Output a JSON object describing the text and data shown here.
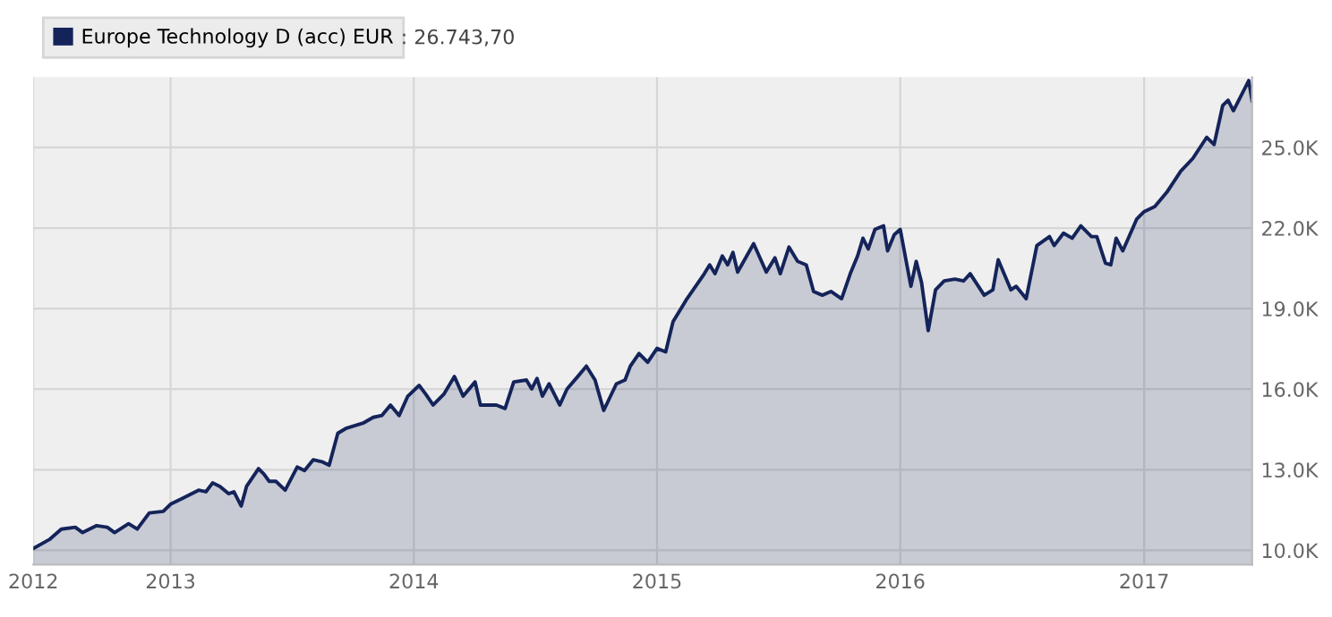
{
  "chart_data": {
    "type": "area",
    "series": [
      {
        "name": "Europe Technology D (acc) EUR",
        "color": "#14245a",
        "x": [
          "2012-06-09",
          "2012-07-03",
          "2012-07-21",
          "2012-08-11",
          "2012-08-22",
          "2012-09-12",
          "2012-09-28",
          "2012-10-09",
          "2012-10-30",
          "2012-11-12",
          "2012-11-30",
          "2012-12-21",
          "2013-01-01",
          "2013-01-17",
          "2013-02-12",
          "2013-02-23",
          "2013-03-05",
          "2013-03-16",
          "2013-03-29",
          "2013-04-06",
          "2013-04-17",
          "2013-04-25",
          "2013-05-13",
          "2013-05-21",
          "2013-05-29",
          "2013-06-08",
          "2013-06-22",
          "2013-07-10",
          "2013-07-21",
          "2013-08-03",
          "2013-08-16",
          "2013-08-27",
          "2013-09-09",
          "2013-09-22",
          "2013-10-18",
          "2013-11-01",
          "2013-11-14",
          "2013-11-27",
          "2013-12-10",
          "2013-12-23",
          "2014-01-09",
          "2014-01-19",
          "2014-01-30",
          "2014-02-15",
          "2014-03-03",
          "2014-03-16",
          "2014-04-03",
          "2014-04-11",
          "2014-05-05",
          "2014-05-18",
          "2014-05-31",
          "2014-06-19",
          "2014-06-27",
          "2014-07-05",
          "2014-07-13",
          "2014-07-23",
          "2014-08-08",
          "2014-08-19",
          "2014-09-04",
          "2014-09-17",
          "2014-09-30",
          "2014-10-13",
          "2014-11-01",
          "2014-11-14",
          "2014-11-22",
          "2014-12-05",
          "2014-12-18",
          "2015-01-01",
          "2015-01-14",
          "2015-01-25",
          "2015-02-15",
          "2015-03-13",
          "2015-03-21",
          "2015-03-29",
          "2015-04-09",
          "2015-04-17",
          "2015-04-25",
          "2015-05-02",
          "2015-05-26",
          "2015-06-14",
          "2015-06-27",
          "2015-07-05",
          "2015-07-18",
          "2015-07-31",
          "2015-08-13",
          "2015-08-24",
          "2015-09-06",
          "2015-09-19",
          "2015-10-05",
          "2015-10-18",
          "2015-10-29",
          "2015-11-06",
          "2015-11-14",
          "2015-11-24",
          "2015-12-07",
          "2015-12-13",
          "2015-12-23",
          "2016-01-01",
          "2016-01-17",
          "2016-01-25",
          "2016-02-02",
          "2016-02-12",
          "2016-02-23",
          "2016-03-07",
          "2016-03-23",
          "2016-04-05",
          "2016-04-15",
          "2016-05-06",
          "2016-05-19",
          "2016-05-27",
          "2016-06-15",
          "2016-06-23",
          "2016-07-08",
          "2016-07-24",
          "2016-08-12",
          "2016-08-19",
          "2016-09-02",
          "2016-09-15",
          "2016-09-28",
          "2016-10-14",
          "2016-10-22",
          "2016-11-04",
          "2016-11-12",
          "2016-11-20",
          "2016-11-30",
          "2016-12-21",
          "2017-01-01",
          "2017-01-17",
          "2017-02-04",
          "2017-02-25",
          "2017-03-15",
          "2017-04-05",
          "2017-04-16",
          "2017-04-29",
          "2017-05-07",
          "2017-05-15",
          "2017-06-07",
          "2017-06-12"
        ],
        "values": [
          10070,
          10400,
          10790,
          10860,
          10660,
          10920,
          10860,
          10660,
          10990,
          10790,
          11390,
          11450,
          11720,
          11910,
          12240,
          12180,
          12510,
          12380,
          12110,
          12180,
          11650,
          12380,
          13040,
          12840,
          12570,
          12570,
          12240,
          13100,
          12970,
          13370,
          13300,
          13170,
          14360,
          14550,
          14750,
          14950,
          15020,
          15410,
          15020,
          15740,
          16140,
          15810,
          15410,
          15810,
          16470,
          15740,
          16270,
          15410,
          15410,
          15280,
          16270,
          16340,
          16010,
          16400,
          15740,
          16200,
          15410,
          16010,
          16470,
          16860,
          16340,
          15210,
          16200,
          16340,
          16860,
          17330,
          17000,
          17520,
          17390,
          18510,
          19370,
          20300,
          20630,
          20300,
          20960,
          20630,
          21090,
          20360,
          21420,
          20360,
          20890,
          20300,
          21290,
          20760,
          20630,
          19640,
          19500,
          19640,
          19370,
          20300,
          20960,
          21620,
          21220,
          21950,
          22080,
          21150,
          21750,
          21950,
          19830,
          20760,
          19970,
          18180,
          19700,
          20030,
          20100,
          20030,
          20300,
          19500,
          19700,
          20820,
          19700,
          19830,
          19370,
          21350,
          21680,
          21350,
          21810,
          21620,
          22080,
          21680,
          21680,
          20690,
          20630,
          21620,
          21150,
          22340,
          22610,
          22800,
          23330,
          24120,
          24590,
          25380,
          25110,
          26570,
          26760,
          26370,
          27490,
          26740
        ]
      }
    ],
    "annotations": [
      ": 26.743,70"
    ],
    "xlim": [
      "2012-06-09",
      "2017-06-12"
    ],
    "xticks": [
      {
        "value": "2012-06-09",
        "label": "2012"
      },
      {
        "value": "2013-01-01",
        "label": "2013"
      },
      {
        "value": "2014-01-01",
        "label": "2014"
      },
      {
        "value": "2015-01-01",
        "label": "2015"
      },
      {
        "value": "2016-01-01",
        "label": "2016"
      },
      {
        "value": "2017-01-01",
        "label": "2017"
      }
    ],
    "ylim": [
      9470,
      27620
    ],
    "yticks": [
      {
        "value": 10000,
        "label": "10.0K"
      },
      {
        "value": 13000,
        "label": "13.0K"
      },
      {
        "value": 16000,
        "label": "16.0K"
      },
      {
        "value": 19000,
        "label": "19.0K"
      },
      {
        "value": 22000,
        "label": "22.0K"
      },
      {
        "value": 25000,
        "label": "25.0K"
      }
    ],
    "grid": true,
    "legend": "top left"
  }
}
